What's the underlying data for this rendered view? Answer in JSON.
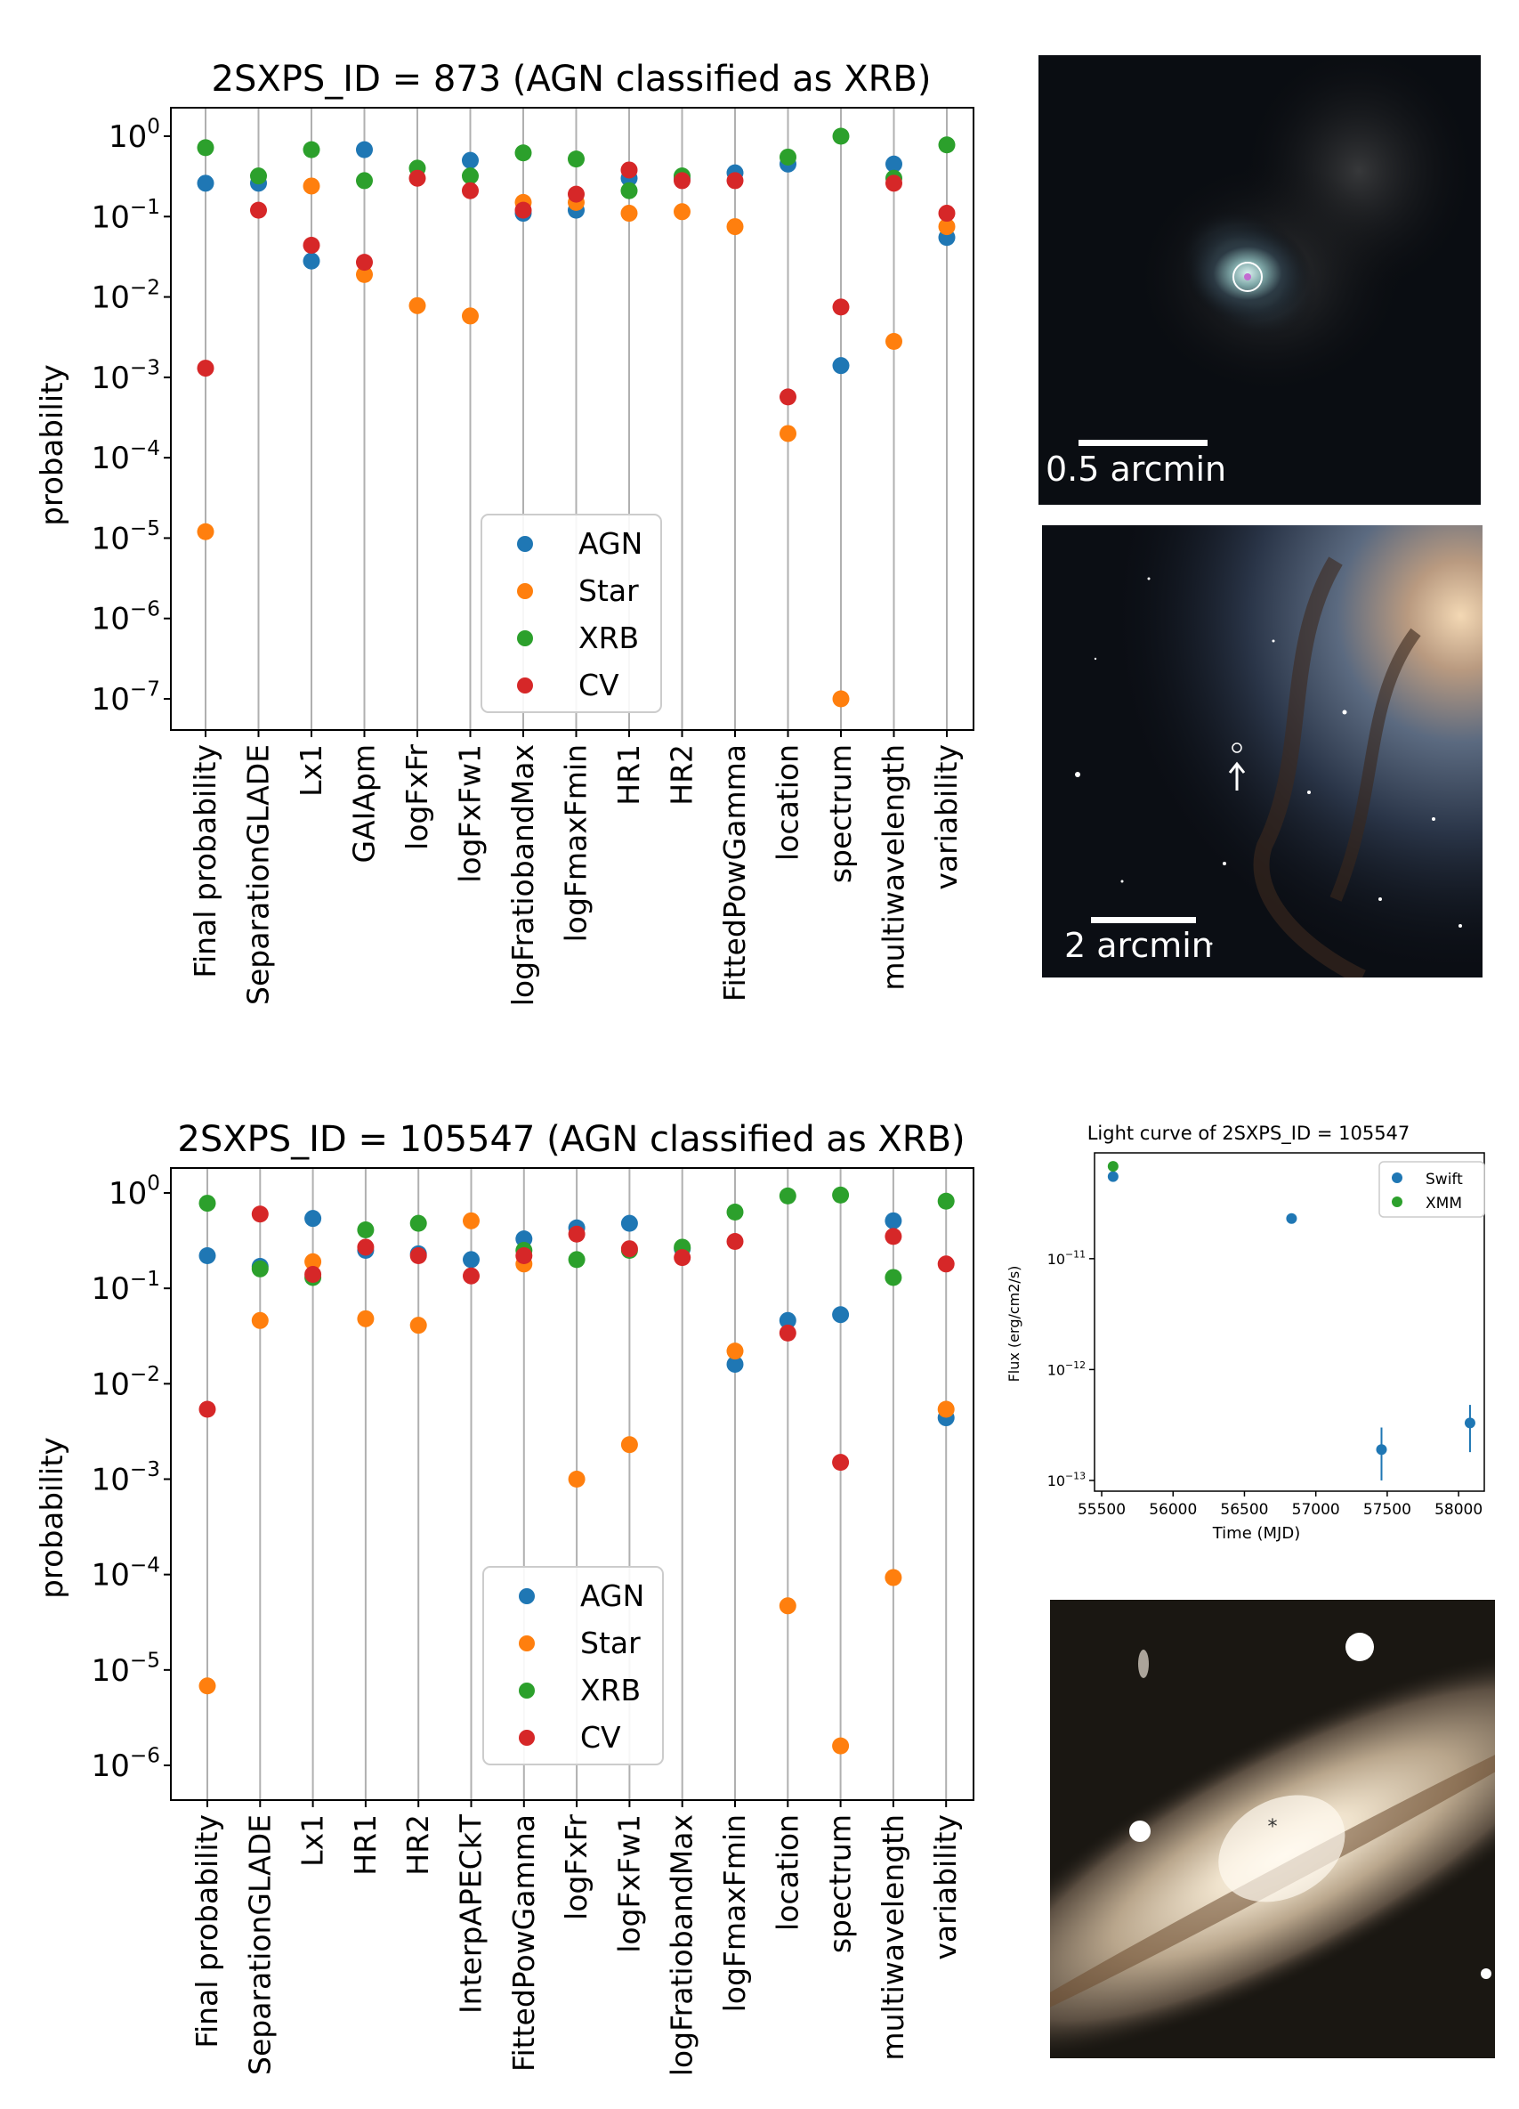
{
  "chart_data": [
    {
      "type": "scatter",
      "title": "2SXPS_ID = 873 (AGN classified as XRB)",
      "ylabel": "probability",
      "yscale": "log",
      "ylim": [
        1e-07,
        1
      ],
      "yticks": [
        {
          "exp": "0",
          "v": 1
        },
        {
          "exp": "−1",
          "v": 0.1
        },
        {
          "exp": "−2",
          "v": 0.01
        },
        {
          "exp": "−3",
          "v": 0.001
        },
        {
          "exp": "−4",
          "v": 0.0001
        },
        {
          "exp": "−5",
          "v": 1e-05
        },
        {
          "exp": "−6",
          "v": 1e-06
        },
        {
          "exp": "−7",
          "v": 1e-07
        }
      ],
      "tick_base": "10",
      "grid": "vertical",
      "legend_position": "lower-center",
      "categories": [
        "Final probability",
        "SeparationGLADE",
        "Lx1",
        "GAIApm",
        "logFxFr",
        "logFxFw1",
        "logFratiobandMax",
        "logFmaxFmin",
        "HR1",
        "HR2",
        "FittedPowGamma",
        "location",
        "spectrum",
        "multiwavelength",
        "variability"
      ],
      "series": [
        {
          "name": "AGN",
          "color": "#1f77b4",
          "values": [
            0.26,
            0.26,
            0.028,
            0.68,
            null,
            0.5,
            0.11,
            0.12,
            0.3,
            0.3,
            0.35,
            0.45,
            0.0014,
            0.45,
            0.055
          ]
        },
        {
          "name": "Star",
          "color": "#ff7f0e",
          "values": [
            1.2e-05,
            null,
            0.24,
            0.019,
            0.0078,
            0.0058,
            0.15,
            0.15,
            0.11,
            0.115,
            0.075,
            0.0002,
            1e-07,
            0.0028,
            0.075
          ]
        },
        {
          "name": "XRB",
          "color": "#2ca02c",
          "values": [
            0.72,
            0.32,
            0.68,
            0.28,
            0.4,
            0.32,
            0.62,
            0.52,
            0.21,
            0.32,
            null,
            0.55,
            1.0,
            0.3,
            0.78
          ]
        },
        {
          "name": "CV",
          "color": "#d62728",
          "values": [
            0.0013,
            0.12,
            0.044,
            0.027,
            0.3,
            0.21,
            0.12,
            0.19,
            0.38,
            0.28,
            0.28,
            0.00057,
            0.0075,
            0.26,
            0.11
          ]
        }
      ]
    },
    {
      "type": "scatter",
      "title": "2SXPS_ID = 105547 (AGN classified as XRB)",
      "ylabel": "probability",
      "yscale": "log",
      "ylim": [
        1e-06,
        1
      ],
      "yticks": [
        {
          "exp": "0",
          "v": 1
        },
        {
          "exp": "−1",
          "v": 0.1
        },
        {
          "exp": "−2",
          "v": 0.01
        },
        {
          "exp": "−3",
          "v": 0.001
        },
        {
          "exp": "−4",
          "v": 0.0001
        },
        {
          "exp": "−5",
          "v": 1e-05
        },
        {
          "exp": "−6",
          "v": 1e-06
        }
      ],
      "tick_base": "10",
      "grid": "vertical",
      "legend_position": "lower-center",
      "categories": [
        "Final probability",
        "SeparationGLADE",
        "Lx1",
        "HR1",
        "HR2",
        "InterpAPECkT",
        "FittedPowGamma",
        "logFxFr",
        "logFxFw1",
        "logFratiobandMax",
        "logFmaxFmin",
        "location",
        "spectrum",
        "multiwavelength",
        "variability"
      ],
      "series": [
        {
          "name": "AGN",
          "color": "#1f77b4",
          "values": [
            0.22,
            0.17,
            0.54,
            0.25,
            0.23,
            0.2,
            0.33,
            0.43,
            0.48,
            0.26,
            0.016,
            0.046,
            0.053,
            0.51,
            0.0044
          ]
        },
        {
          "name": "Star",
          "color": "#ff7f0e",
          "values": [
            6.8e-06,
            0.046,
            0.19,
            0.048,
            0.041,
            0.51,
            0.18,
            0.001,
            0.0023,
            null,
            0.022,
            4.7e-05,
            1.6e-06,
            9.3e-05,
            0.0054
          ]
        },
        {
          "name": "XRB",
          "color": "#2ca02c",
          "values": [
            0.78,
            0.16,
            0.13,
            0.41,
            0.48,
            null,
            0.25,
            0.2,
            0.25,
            0.27,
            0.63,
            0.93,
            0.95,
            0.13,
            0.82
          ]
        },
        {
          "name": "CV",
          "color": "#d62728",
          "values": [
            0.0054,
            0.6,
            0.14,
            0.27,
            0.22,
            0.135,
            0.22,
            0.37,
            0.26,
            0.21,
            0.31,
            0.034,
            0.0015,
            0.35,
            0.18
          ]
        }
      ]
    },
    {
      "type": "scatter",
      "title": "Light curve of 2SXPS_ID = 105547",
      "xlabel": "Time (MJD)",
      "ylabel": "Flux (erg/cm2/s)",
      "yscale": "log",
      "xlim": [
        55450,
        58180
      ],
      "ylim": [
        8e-14,
        9e-11
      ],
      "xticks": [
        55500,
        56000,
        56500,
        57000,
        57500,
        58000
      ],
      "yticks": [
        {
          "exp": "−11",
          "v": 1e-11
        },
        {
          "exp": "−12",
          "v": 1e-12
        },
        {
          "exp": "−13",
          "v": 1e-13
        }
      ],
      "tick_base": "10",
      "legend_position": "top-right",
      "series": [
        {
          "name": "Swift",
          "color": "#1f77b4",
          "points": [
            {
              "x": 55580,
              "y": 5.5e-11
            },
            {
              "x": 56830,
              "y": 2.3e-11
            },
            {
              "x": 57460,
              "y": 1.9e-13,
              "ylo": 1e-13,
              "yhi": 3e-13
            },
            {
              "x": 58080,
              "y": 3.3e-13,
              "ylo": 1.8e-13,
              "yhi": 4.8e-13
            }
          ]
        },
        {
          "name": "XMM",
          "color": "#2ca02c",
          "points": [
            {
              "x": 55580,
              "y": 6.8e-11
            }
          ]
        }
      ]
    }
  ],
  "images": {
    "xray_scale_label": "0.5 arcmin",
    "optical_scale_label": "2 arcmin"
  }
}
